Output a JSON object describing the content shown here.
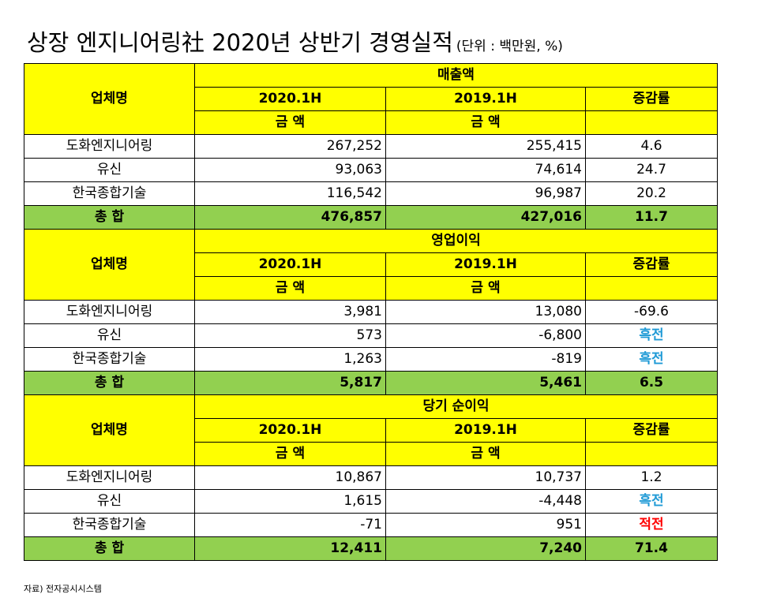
{
  "title": {
    "main": "상장 엔지니어링社 2020년 상반기 경영실적",
    "unit": "(단위 : 백만원, %)"
  },
  "headers": {
    "company": "업체명",
    "period_current": "2020.1H",
    "period_prior": "2019.1H",
    "change_rate": "증감률",
    "amount": "금 액"
  },
  "sections": [
    {
      "name": "매출액",
      "rows": [
        {
          "company": "도화엔지니어링",
          "current": "267,252",
          "prior": "255,415",
          "change": "4.6",
          "change_style": "plain"
        },
        {
          "company": "유신",
          "current": "93,063",
          "prior": "74,614",
          "change": "24.7",
          "change_style": "plain"
        },
        {
          "company": "한국종합기술",
          "current": "116,542",
          "prior": "96,987",
          "change": "20.2",
          "change_style": "plain"
        }
      ],
      "total": {
        "label": "총 합",
        "current": "476,857",
        "prior": "427,016",
        "change": "11.7"
      }
    },
    {
      "name": "영업이익",
      "rows": [
        {
          "company": "도화엔지니어링",
          "current": "3,981",
          "prior": "13,080",
          "change": "-69.6",
          "change_style": "plain"
        },
        {
          "company": "유신",
          "current": "573",
          "prior": "-6,800",
          "change": "흑전",
          "change_style": "blue"
        },
        {
          "company": "한국종합기술",
          "current": "1,263",
          "prior": "-819",
          "change": "흑전",
          "change_style": "blue"
        }
      ],
      "total": {
        "label": "총 합",
        "current": "5,817",
        "prior": "5,461",
        "change": "6.5"
      }
    },
    {
      "name": "당기 순이익",
      "rows": [
        {
          "company": "도화엔지니어링",
          "current": "10,867",
          "prior": "10,737",
          "change": "1.2",
          "change_style": "plain"
        },
        {
          "company": "유신",
          "current": "1,615",
          "prior": "-4,448",
          "change": "흑전",
          "change_style": "blue"
        },
        {
          "company": "한국종합기술",
          "current": "-71",
          "prior": "951",
          "change": "적전",
          "change_style": "red"
        }
      ],
      "total": {
        "label": "총 합",
        "current": "12,411",
        "prior": "7,240",
        "change": "71.4"
      }
    }
  ],
  "colors": {
    "header_bg": "#ffff00",
    "total_bg": "#92d050",
    "positive_turn": "#1f9ad6",
    "negative_turn": "#ff0000"
  },
  "source": "자료) 전자공시시스템"
}
